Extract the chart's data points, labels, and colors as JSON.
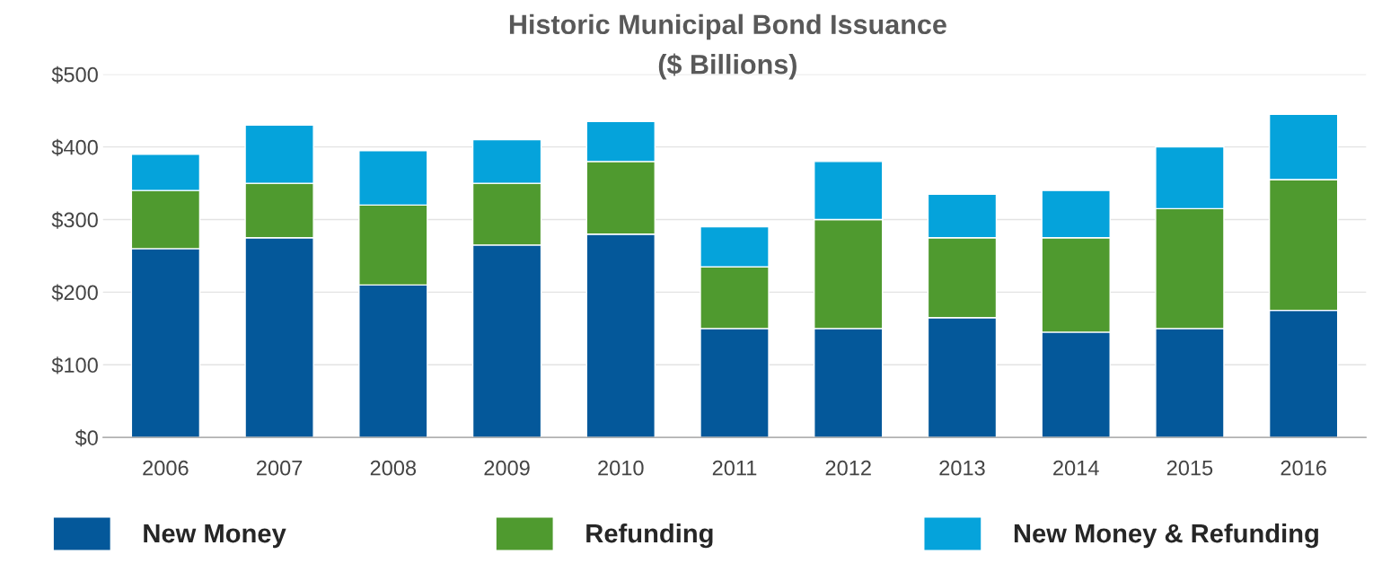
{
  "chart_data": {
    "type": "bar",
    "title": "Historic Municipal Bond Issuance",
    "subtitle": "($ Billions)",
    "categories": [
      "2006",
      "2007",
      "2008",
      "2009",
      "2010",
      "2011",
      "2012",
      "2013",
      "2014",
      "2015",
      "2016"
    ],
    "stacked": true,
    "series": [
      {
        "name": "New Money",
        "color": "#04589a",
        "values": [
          260,
          275,
          210,
          265,
          280,
          150,
          150,
          165,
          145,
          150,
          175
        ]
      },
      {
        "name": "Refunding",
        "color": "#4f9a2f",
        "values": [
          80,
          75,
          110,
          85,
          100,
          85,
          150,
          110,
          130,
          165,
          180
        ]
      },
      {
        "name": "New Money & Refunding",
        "color": "#05a3db",
        "values": [
          50,
          80,
          75,
          60,
          55,
          55,
          80,
          60,
          65,
          85,
          90
        ]
      }
    ],
    "ylim": [
      0,
      500
    ],
    "yticks": [
      {
        "value": 0,
        "label": "$0"
      },
      {
        "value": 100,
        "label": "$100"
      },
      {
        "value": 200,
        "label": "$200"
      },
      {
        "value": 300,
        "label": "$300"
      },
      {
        "value": 400,
        "label": "$400"
      },
      {
        "value": 500,
        "label": "$500"
      }
    ],
    "grid": "y",
    "legend": "bottom"
  }
}
